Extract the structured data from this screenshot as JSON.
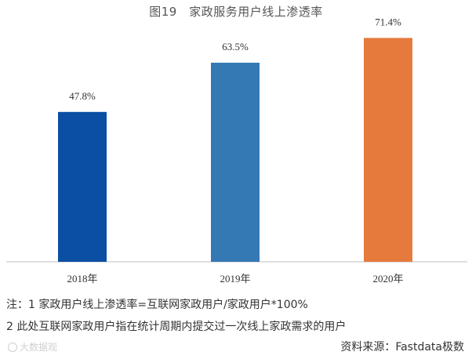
{
  "chart_data": {
    "type": "bar",
    "title": "图19　家政服务用户线上渗透率",
    "categories": [
      "2018年",
      "2019年",
      "2020年"
    ],
    "values": [
      47.8,
      63.5,
      71.4
    ],
    "value_labels": [
      "47.8%",
      "63.5%",
      "71.4%"
    ],
    "bar_colors": [
      "#0a4fa3",
      "#3478b4",
      "#e67a3c"
    ],
    "ylim": [
      0,
      100
    ],
    "grid": false,
    "legend": "none"
  },
  "notes": {
    "line1": "注：1 家政用户线上渗透率=互联网家政用户/家政用户*100%",
    "line2": "2 此处互联网家政用户指在统计周期内提交过一次线上家政需求的用户"
  },
  "watermark_text": "大数据观",
  "source": "资料来源：Fastdata极数"
}
